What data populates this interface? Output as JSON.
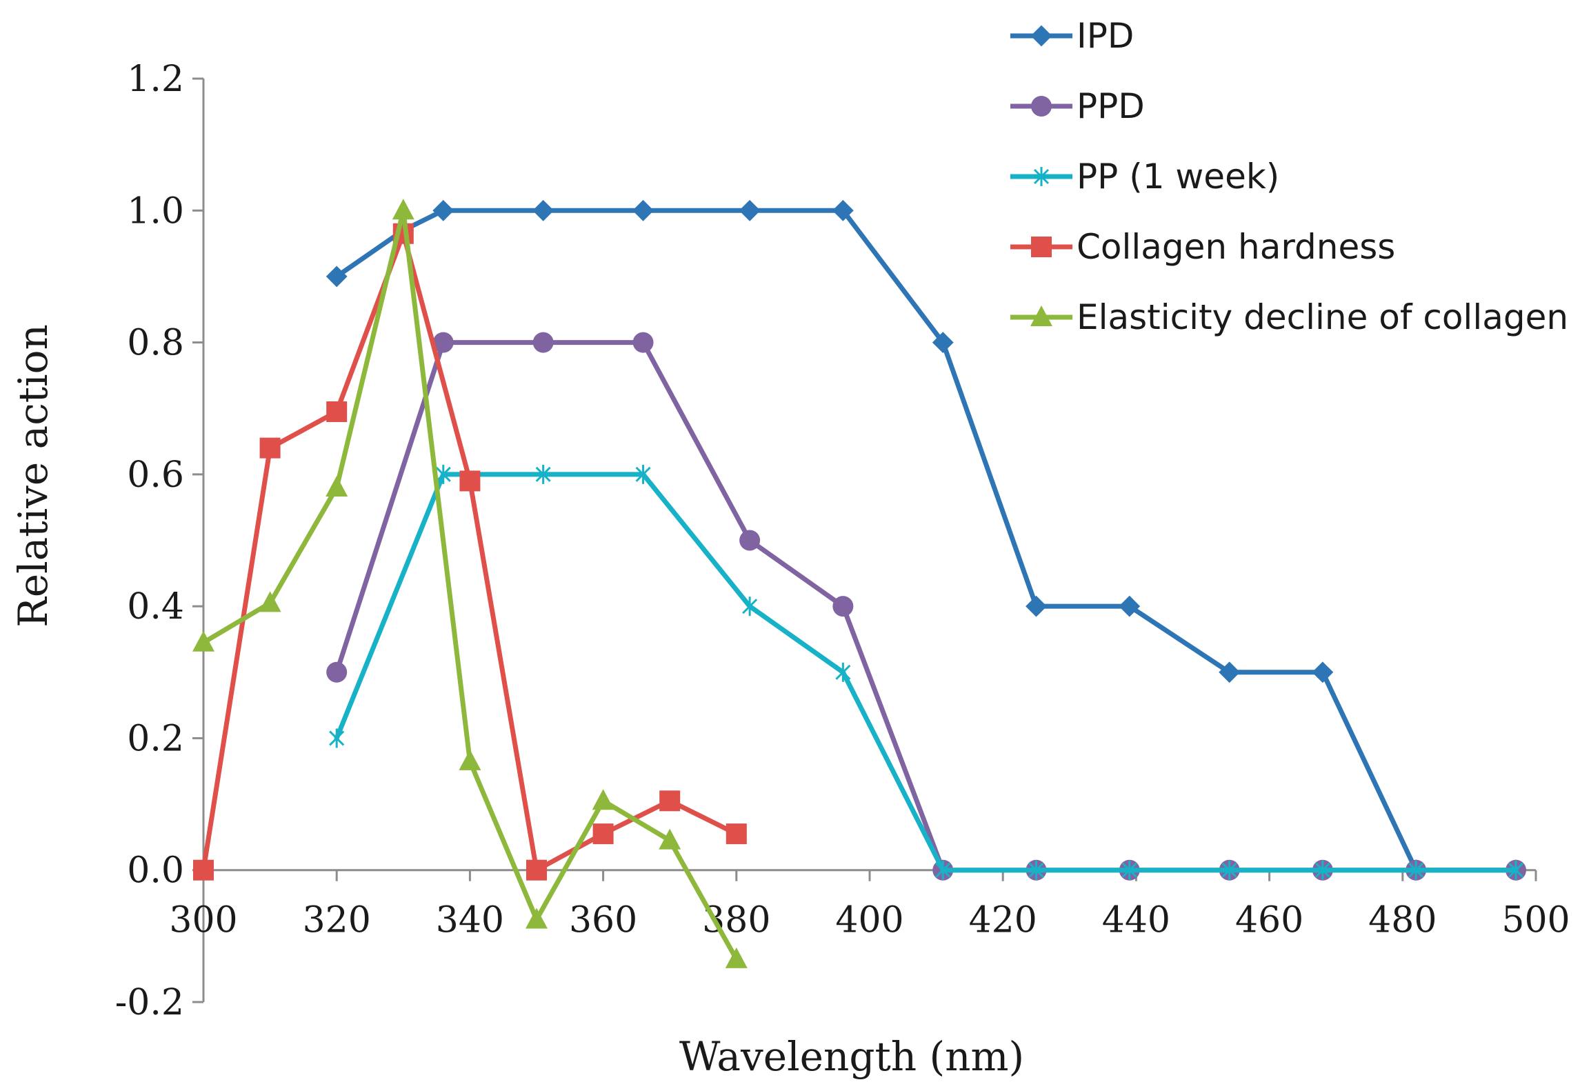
{
  "chart_data": {
    "type": "line",
    "title": "",
    "xlabel": "Wavelength  (nm)",
    "ylabel": "Relative action",
    "xlim": [
      300,
      500
    ],
    "ylim": [
      -0.2,
      1.2
    ],
    "xticks": [
      300,
      320,
      340,
      360,
      380,
      400,
      420,
      440,
      460,
      480,
      500
    ],
    "yticks": [
      -0.2,
      0.0,
      0.2,
      0.4,
      0.6,
      0.8,
      1.0,
      1.2
    ],
    "xtick_labels": [
      "300",
      "320",
      "340",
      "360",
      "380",
      "400",
      "420",
      "440",
      "460",
      "480",
      "500"
    ],
    "ytick_labels": [
      "-0.2",
      "0.0",
      "0.2",
      "0.4",
      "0.6",
      "0.8",
      "1.0",
      "1.2"
    ],
    "grid": false,
    "legend_position": "top-right",
    "series": [
      {
        "name": "IPD",
        "color": "#2e75b6",
        "marker": "diamond",
        "x": [
          320,
          330,
          336,
          351,
          366,
          382,
          396,
          411,
          425,
          439,
          454,
          468,
          482,
          497
        ],
        "y": [
          0.9,
          0.97,
          1.0,
          1.0,
          1.0,
          1.0,
          1.0,
          0.8,
          0.4,
          0.4,
          0.3,
          0.3,
          0.0,
          0.0
        ]
      },
      {
        "name": "PPD",
        "color": "#8064a2",
        "marker": "circle",
        "x": [
          320,
          336,
          351,
          366,
          382,
          396,
          411,
          425,
          439,
          454,
          468,
          482,
          497
        ],
        "y": [
          0.3,
          0.8,
          0.8,
          0.8,
          0.5,
          0.4,
          0.0,
          0.0,
          0.0,
          0.0,
          0.0,
          0.0,
          0.0
        ]
      },
      {
        "name": "PP (1 week)",
        "color": "#17b2c8",
        "marker": "star",
        "x": [
          320,
          336,
          351,
          366,
          382,
          396,
          411,
          425,
          439,
          454,
          468,
          482,
          497
        ],
        "y": [
          0.2,
          0.6,
          0.6,
          0.6,
          0.4,
          0.3,
          0.0,
          0.0,
          0.0,
          0.0,
          0.0,
          0.0,
          0.0
        ]
      },
      {
        "name": "Collagen hardness",
        "color": "#e0504a",
        "marker": "square",
        "x": [
          300,
          310,
          320,
          330,
          340,
          350,
          360,
          370,
          380
        ],
        "y": [
          0.0,
          0.64,
          0.695,
          0.965,
          0.59,
          0.0,
          0.055,
          0.105,
          0.055
        ]
      },
      {
        "name": "Elasticity decline of collagen",
        "color": "#8db83c",
        "marker": "triangle",
        "x": [
          300,
          310,
          320,
          330,
          340,
          350,
          360,
          370,
          380
        ],
        "y": [
          0.345,
          0.405,
          0.58,
          1.0,
          0.165,
          -0.075,
          0.105,
          0.045,
          -0.135
        ]
      }
    ]
  }
}
